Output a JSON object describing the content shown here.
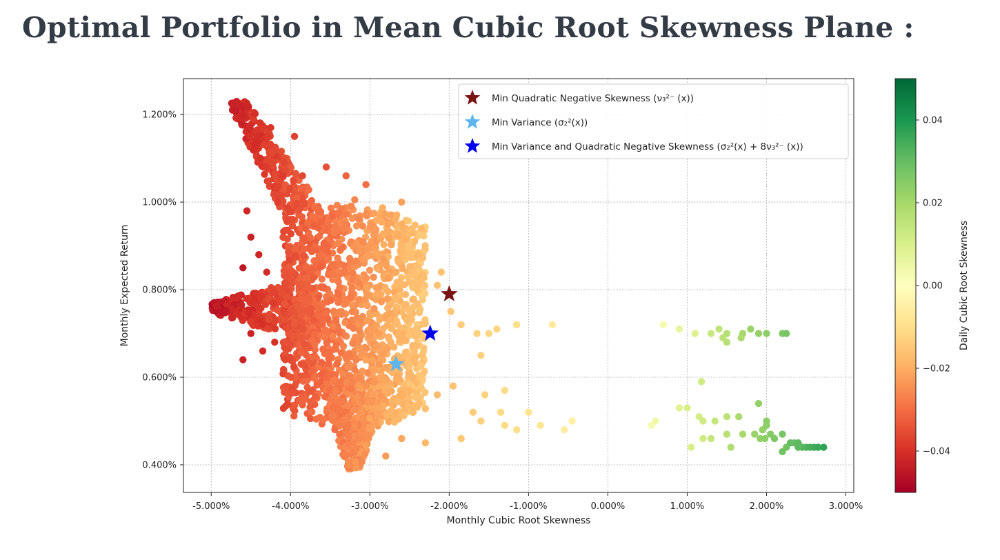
{
  "page": {
    "title": "Optimal Portfolio in Mean Cubic Root Skewness Plane :"
  },
  "chart_data": {
    "type": "scatter",
    "xlabel": "Monthly Cubic Root Skewness",
    "ylabel": "Monthly Expected Return",
    "xlim": [
      -5.35,
      3.1
    ],
    "ylim": [
      0.337,
      1.282
    ],
    "xticks": [
      -5,
      -4,
      -3,
      -2,
      -1,
      0,
      1,
      2,
      3
    ],
    "yticks": [
      0.4,
      0.6,
      0.8,
      1.0,
      1.2
    ],
    "tick_format": "percent_3dp",
    "x_tick_labels": [
      "-5.000%",
      "-4.000%",
      "-3.000%",
      "-2.000%",
      "-1.000%",
      "0.000%",
      "1.000%",
      "2.000%",
      "3.000%"
    ],
    "y_tick_labels": [
      "0.400%",
      "0.600%",
      "0.800%",
      "1.000%",
      "1.200%"
    ],
    "grid": true,
    "colorbar": {
      "label": "Daily Cubic Root Skewness",
      "range": [
        -0.05,
        0.05
      ],
      "ticks": [
        -0.04,
        -0.02,
        0.0,
        0.02,
        0.04
      ],
      "tick_labels": [
        "−0.04",
        "−0.02",
        "0.00",
        "0.02",
        "0.04"
      ],
      "colormap": "RdYlGn",
      "colormap_stops": [
        "#a50026",
        "#d73027",
        "#f46d43",
        "#fdae61",
        "#fee08b",
        "#ffffbf",
        "#d9ef8b",
        "#a6d96a",
        "#66bd63",
        "#1a9850",
        "#006837"
      ]
    },
    "legend": {
      "placement": "top-right",
      "entries": [
        {
          "label": "Min Quadratic Negative Skewness (ν₃²⁻ (x))",
          "color": "#7a1414",
          "marker": "star"
        },
        {
          "label": "Min Variance (σ₂²(x))",
          "color": "#5cb6ee",
          "marker": "star"
        },
        {
          "label": "Min Variance and Quadratic Negative Skewness (σ₂²(x) + 8ν₃²⁻ (x))",
          "color": "#0000ee",
          "marker": "star"
        }
      ]
    },
    "optimal_points": [
      {
        "name": "Min Quadratic Negative Skewness",
        "x": -2.0,
        "y": 0.79,
        "color": "#7a1414"
      },
      {
        "name": "Min Variance",
        "x": -2.67,
        "y": 0.63,
        "color": "#5cb6ee"
      },
      {
        "name": "Min Variance and Quadratic Negative Skewness",
        "x": -2.24,
        "y": 0.7,
        "color": "#0000ee"
      }
    ],
    "point_color_by": "colorbar value (daily cubic root skewness)",
    "dense_cloud_regions": [
      {
        "x_range": [
          -4.0,
          -2.3
        ],
        "y_range": [
          0.48,
          0.97
        ]
      },
      {
        "x_range": [
          -3.6,
          -2.9
        ],
        "y_range": [
          0.39,
          0.6
        ]
      },
      {
        "x_range": [
          -4.4,
          -3.6
        ],
        "y_range": [
          0.95,
          1.23
        ]
      },
      {
        "x_range": [
          -5.0,
          -3.7
        ],
        "y_range": [
          0.72,
          0.8
        ]
      }
    ],
    "scattered_points": [
      {
        "x": -4.68,
        "y": 1.23,
        "c": -0.043
      },
      {
        "x": -4.6,
        "y": 1.2,
        "c": -0.042
      },
      {
        "x": -4.52,
        "y": 1.17,
        "c": -0.041
      },
      {
        "x": -4.45,
        "y": 1.13,
        "c": -0.041
      },
      {
        "x": -4.38,
        "y": 1.1,
        "c": -0.04
      },
      {
        "x": -4.25,
        "y": 1.17,
        "c": -0.039
      },
      {
        "x": -4.1,
        "y": 1.06,
        "c": -0.038
      },
      {
        "x": -3.95,
        "y": 1.15,
        "c": -0.037
      },
      {
        "x": -3.85,
        "y": 1.06,
        "c": -0.036
      },
      {
        "x": -3.55,
        "y": 1.08,
        "c": -0.035
      },
      {
        "x": -3.3,
        "y": 1.06,
        "c": -0.032
      },
      {
        "x": -3.05,
        "y": 1.04,
        "c": -0.03
      },
      {
        "x": -4.55,
        "y": 0.98,
        "c": -0.042
      },
      {
        "x": -4.5,
        "y": 0.92,
        "c": -0.043
      },
      {
        "x": -4.6,
        "y": 0.85,
        "c": -0.045
      },
      {
        "x": -4.4,
        "y": 0.88,
        "c": -0.042
      },
      {
        "x": -4.6,
        "y": 0.64,
        "c": -0.043
      },
      {
        "x": -4.35,
        "y": 0.66,
        "c": -0.041
      },
      {
        "x": -4.2,
        "y": 0.68,
        "c": -0.04
      },
      {
        "x": -4.5,
        "y": 0.7,
        "c": -0.043
      },
      {
        "x": -4.3,
        "y": 0.84,
        "c": -0.041
      },
      {
        "x": -2.6,
        "y": 0.95,
        "c": -0.02
      },
      {
        "x": -2.35,
        "y": 0.94,
        "c": -0.018
      },
      {
        "x": -2.4,
        "y": 0.88,
        "c": -0.018
      },
      {
        "x": -2.6,
        "y": 1.0,
        "c": -0.022
      },
      {
        "x": -2.15,
        "y": 0.81,
        "c": -0.016
      },
      {
        "x": -2.1,
        "y": 0.84,
        "c": -0.016
      },
      {
        "x": -1.98,
        "y": 0.75,
        "c": -0.015
      },
      {
        "x": -1.85,
        "y": 0.72,
        "c": -0.014
      },
      {
        "x": -1.65,
        "y": 0.7,
        "c": -0.013
      },
      {
        "x": -1.5,
        "y": 0.7,
        "c": -0.012
      },
      {
        "x": -1.4,
        "y": 0.71,
        "c": -0.012
      },
      {
        "x": -1.15,
        "y": 0.72,
        "c": -0.01
      },
      {
        "x": -0.7,
        "y": 0.72,
        "c": -0.007
      },
      {
        "x": -1.6,
        "y": 0.65,
        "c": -0.013
      },
      {
        "x": -2.15,
        "y": 0.56,
        "c": -0.017
      },
      {
        "x": -1.95,
        "y": 0.58,
        "c": -0.016
      },
      {
        "x": -1.7,
        "y": 0.52,
        "c": -0.014
      },
      {
        "x": -1.55,
        "y": 0.56,
        "c": -0.013
      },
      {
        "x": -1.3,
        "y": 0.57,
        "c": -0.011
      },
      {
        "x": -1.15,
        "y": 0.48,
        "c": -0.01
      },
      {
        "x": -1.35,
        "y": 0.52,
        "c": -0.011
      },
      {
        "x": -1.0,
        "y": 0.52,
        "c": -0.009
      },
      {
        "x": -0.85,
        "y": 0.49,
        "c": -0.008
      },
      {
        "x": -0.55,
        "y": 0.48,
        "c": -0.006
      },
      {
        "x": -0.45,
        "y": 0.5,
        "c": -0.005
      },
      {
        "x": -1.85,
        "y": 0.46,
        "c": -0.015
      },
      {
        "x": -2.3,
        "y": 0.45,
        "c": -0.018
      },
      {
        "x": -2.8,
        "y": 0.42,
        "c": -0.023
      },
      {
        "x": -2.6,
        "y": 0.46,
        "c": -0.021
      },
      {
        "x": -1.6,
        "y": 0.5,
        "c": -0.013
      },
      {
        "x": -1.3,
        "y": 0.49,
        "c": -0.011
      },
      {
        "x": 0.7,
        "y": 0.72,
        "c": 0.003
      },
      {
        "x": 0.9,
        "y": 0.71,
        "c": 0.006
      },
      {
        "x": 1.1,
        "y": 0.7,
        "c": 0.009
      },
      {
        "x": 1.3,
        "y": 0.7,
        "c": 0.013
      },
      {
        "x": 1.4,
        "y": 0.71,
        "c": 0.015
      },
      {
        "x": 1.5,
        "y": 0.7,
        "c": 0.017
      },
      {
        "x": 1.45,
        "y": 0.69,
        "c": 0.016
      },
      {
        "x": 1.5,
        "y": 0.68,
        "c": 0.017
      },
      {
        "x": 1.7,
        "y": 0.7,
        "c": 0.02
      },
      {
        "x": 1.8,
        "y": 0.71,
        "c": 0.022
      },
      {
        "x": 1.9,
        "y": 0.7,
        "c": 0.023
      },
      {
        "x": 2.0,
        "y": 0.7,
        "c": 0.024
      },
      {
        "x": 2.2,
        "y": 0.7,
        "c": 0.026
      },
      {
        "x": 2.25,
        "y": 0.7,
        "c": 0.027
      },
      {
        "x": 1.68,
        "y": 0.69,
        "c": 0.019
      },
      {
        "x": 1.18,
        "y": 0.59,
        "c": 0.012
      },
      {
        "x": 0.9,
        "y": 0.53,
        "c": 0.008
      },
      {
        "x": 1.0,
        "y": 0.53,
        "c": 0.01
      },
      {
        "x": 0.55,
        "y": 0.49,
        "c": 0.003
      },
      {
        "x": 0.6,
        "y": 0.5,
        "c": 0.004
      },
      {
        "x": 1.15,
        "y": 0.51,
        "c": 0.011
      },
      {
        "x": 1.2,
        "y": 0.5,
        "c": 0.012
      },
      {
        "x": 1.35,
        "y": 0.5,
        "c": 0.014
      },
      {
        "x": 1.5,
        "y": 0.51,
        "c": 0.016
      },
      {
        "x": 1.3,
        "y": 0.46,
        "c": 0.014
      },
      {
        "x": 1.2,
        "y": 0.46,
        "c": 0.012
      },
      {
        "x": 1.05,
        "y": 0.44,
        "c": 0.01
      },
      {
        "x": 1.5,
        "y": 0.47,
        "c": 0.017
      },
      {
        "x": 1.55,
        "y": 0.44,
        "c": 0.018
      },
      {
        "x": 1.65,
        "y": 0.51,
        "c": 0.019
      },
      {
        "x": 1.7,
        "y": 0.47,
        "c": 0.02
      },
      {
        "x": 1.9,
        "y": 0.54,
        "c": 0.023
      },
      {
        "x": 1.85,
        "y": 0.47,
        "c": 0.022
      },
      {
        "x": 1.95,
        "y": 0.48,
        "c": 0.023
      },
      {
        "x": 2.0,
        "y": 0.49,
        "c": 0.024
      },
      {
        "x": 2.0,
        "y": 0.5,
        "c": 0.024
      },
      {
        "x": 2.05,
        "y": 0.47,
        "c": 0.025
      },
      {
        "x": 2.1,
        "y": 0.46,
        "c": 0.026
      },
      {
        "x": 2.2,
        "y": 0.47,
        "c": 0.027
      },
      {
        "x": 2.25,
        "y": 0.44,
        "c": 0.028
      },
      {
        "x": 2.2,
        "y": 0.43,
        "c": 0.028
      },
      {
        "x": 2.35,
        "y": 0.45,
        "c": 0.03
      },
      {
        "x": 2.4,
        "y": 0.45,
        "c": 0.031
      },
      {
        "x": 2.45,
        "y": 0.44,
        "c": 0.032
      },
      {
        "x": 2.5,
        "y": 0.44,
        "c": 0.033
      },
      {
        "x": 2.55,
        "y": 0.44,
        "c": 0.034
      },
      {
        "x": 2.6,
        "y": 0.44,
        "c": 0.035
      },
      {
        "x": 2.65,
        "y": 0.44,
        "c": 0.036
      },
      {
        "x": 2.72,
        "y": 0.44,
        "c": 0.037
      },
      {
        "x": 2.4,
        "y": 0.44,
        "c": 0.031
      },
      {
        "x": 2.3,
        "y": 0.45,
        "c": 0.03
      },
      {
        "x": 1.92,
        "y": 0.46,
        "c": 0.023
      },
      {
        "x": 1.98,
        "y": 0.46,
        "c": 0.024
      }
    ]
  }
}
